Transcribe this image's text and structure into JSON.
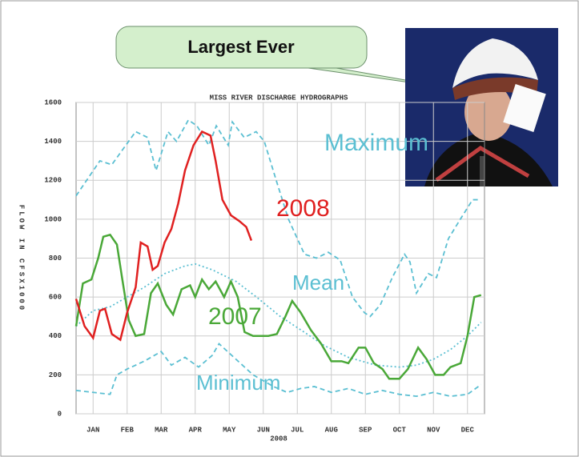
{
  "callout": "Largest Ever",
  "chart_data": {
    "type": "line",
    "title": "MISS RIVER DISCHARGE HYDROGRAPHS",
    "y_label": "FLOW IN CFSX1000",
    "x_label": "2008",
    "xlim": [
      0,
      12
    ],
    "ylim": [
      0,
      1600
    ],
    "yticks": [
      0,
      200,
      400,
      600,
      800,
      1000,
      1200,
      1400,
      1600
    ],
    "xticks": [
      {
        "value": 0.5,
        "label": "JAN"
      },
      {
        "value": 1.5,
        "label": "FEB"
      },
      {
        "value": 2.5,
        "label": "MAR"
      },
      {
        "value": 3.5,
        "label": "APR"
      },
      {
        "value": 4.5,
        "label": "MAY"
      },
      {
        "value": 5.5,
        "label": "JUN"
      },
      {
        "value": 6.5,
        "label": "JUL"
      },
      {
        "value": 7.5,
        "label": "AUG"
      },
      {
        "value": 8.5,
        "label": "SEP"
      },
      {
        "value": 9.5,
        "label": "OCT"
      },
      {
        "value": 10.5,
        "label": "NOV"
      },
      {
        "value": 11.5,
        "label": "DEC"
      }
    ],
    "grid": true,
    "series": [
      {
        "name": "Maximum",
        "color": "#5bbfd2",
        "style": "dashed",
        "x": [
          0,
          0.7,
          1.05,
          1.75,
          2.1,
          2.35,
          2.7,
          2.95,
          3.3,
          3.55,
          3.9,
          4.12,
          4.47,
          4.59,
          4.94,
          5.29,
          5.53,
          5.88,
          6.24,
          6.71,
          7.06,
          7.41,
          7.76,
          8.12,
          8.47,
          8.64,
          8.94,
          9.29,
          9.65,
          9.81,
          10.0,
          10.35,
          10.59,
          10.94,
          11.29,
          11.65,
          11.88
        ],
        "values": [
          1120,
          1300,
          1280,
          1450,
          1420,
          1250,
          1450,
          1400,
          1510,
          1480,
          1380,
          1480,
          1380,
          1500,
          1420,
          1450,
          1400,
          1200,
          1000,
          820,
          800,
          830,
          790,
          600,
          520,
          500,
          560,
          700,
          820,
          780,
          620,
          720,
          700,
          900,
          1000,
          1100,
          1100
        ]
      },
      {
        "name": "Mean",
        "color": "#5bbfd2",
        "style": "dotted",
        "x": [
          0,
          0.5,
          1,
          1.5,
          2,
          2.6,
          3.2,
          3.5,
          4,
          4.7,
          5.3,
          6,
          6.7,
          7.3,
          8,
          8.8,
          9.5,
          10,
          10.5,
          11,
          11.5,
          11.9
        ],
        "values": [
          450,
          530,
          550,
          600,
          650,
          720,
          760,
          770,
          740,
          680,
          600,
          500,
          420,
          350,
          290,
          250,
          240,
          250,
          280,
          330,
          400,
          470
        ]
      },
      {
        "name": "Minimum",
        "color": "#5bbfd2",
        "style": "dashed",
        "x": [
          0,
          0.5,
          1,
          1.2,
          1.5,
          2,
          2.5,
          2.8,
          3.2,
          3.6,
          4,
          4.2,
          4.7,
          5.2,
          5.8,
          6.2,
          6.6,
          7,
          7.5,
          8,
          8.5,
          9,
          9.5,
          10,
          10.5,
          11,
          11.5,
          11.9
        ],
        "values": [
          120,
          110,
          100,
          200,
          230,
          270,
          320,
          250,
          290,
          240,
          300,
          360,
          280,
          200,
          140,
          110,
          130,
          140,
          110,
          130,
          100,
          120,
          100,
          90,
          110,
          90,
          100,
          150
        ]
      },
      {
        "name": "2007",
        "color": "#4aa838",
        "style": "solid",
        "x": [
          0,
          0.2,
          0.45,
          0.65,
          0.8,
          1.0,
          1.2,
          1.35,
          1.55,
          1.75,
          2.0,
          2.2,
          2.4,
          2.65,
          2.85,
          3.1,
          3.35,
          3.5,
          3.7,
          3.9,
          4.1,
          4.35,
          4.55,
          4.75,
          4.95,
          5.2,
          5.45,
          5.65,
          5.9,
          6.15,
          6.35,
          6.6,
          6.9,
          7.2,
          7.5,
          7.8,
          8.0,
          8.3,
          8.5,
          8.75,
          9.0,
          9.2,
          9.5,
          9.75,
          10.05,
          10.3,
          10.55,
          10.8,
          11.0,
          11.3,
          11.5,
          11.7,
          11.9
        ],
        "values": [
          450,
          670,
          690,
          800,
          910,
          920,
          870,
          700,
          480,
          400,
          410,
          620,
          670,
          560,
          510,
          640,
          660,
          600,
          690,
          640,
          680,
          600,
          680,
          600,
          420,
          400,
          400,
          400,
          410,
          500,
          580,
          520,
          430,
          360,
          270,
          270,
          260,
          340,
          340,
          260,
          230,
          180,
          180,
          230,
          340,
          280,
          200,
          200,
          240,
          260,
          400,
          600,
          610
        ]
      },
      {
        "name": "2008",
        "color": "#e02020",
        "style": "solid",
        "x": [
          0,
          0.25,
          0.5,
          0.7,
          0.85,
          1.05,
          1.3,
          1.5,
          1.75,
          1.9,
          2.1,
          2.25,
          2.4,
          2.6,
          2.8,
          3.0,
          3.2,
          3.45,
          3.7,
          3.95,
          4.1,
          4.3,
          4.55,
          4.8,
          5.0,
          5.15
        ],
        "values": [
          590,
          450,
          390,
          530,
          540,
          410,
          380,
          520,
          650,
          880,
          860,
          740,
          760,
          880,
          950,
          1080,
          1250,
          1380,
          1450,
          1430,
          1300,
          1100,
          1020,
          990,
          960,
          890
        ]
      }
    ]
  }
}
